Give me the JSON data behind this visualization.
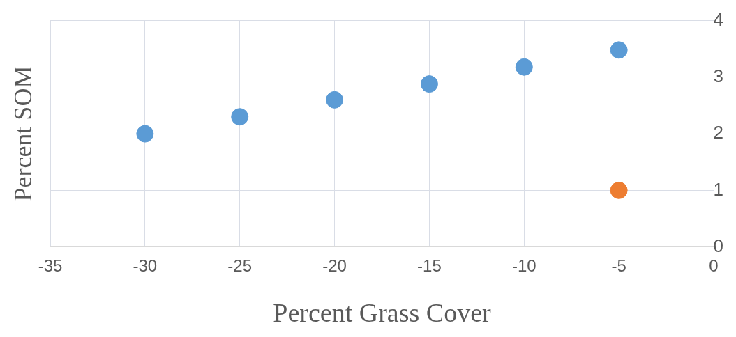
{
  "chart_data": {
    "type": "scatter",
    "xlabel": "Percent Grass Cover",
    "ylabel": "Percent SOM",
    "series": [
      {
        "color": "#5b9bd5",
        "x": [
          -30,
          -25,
          -20,
          -15,
          -10,
          -5
        ],
        "values": [
          2.0,
          2.3,
          2.6,
          2.88,
          3.18,
          3.48
        ]
      },
      {
        "color": "#ed7d31",
        "x": [
          -5
        ],
        "values": [
          1.0
        ]
      }
    ],
    "xlim": [
      -35,
      0
    ],
    "xticks": [
      -35,
      -30,
      -25,
      -20,
      -15,
      -10,
      -5,
      0
    ],
    "ylim": [
      0,
      4
    ],
    "yticks": [
      0,
      1,
      2,
      3,
      4
    ],
    "grid": true,
    "marker": "circle",
    "legend": false
  }
}
